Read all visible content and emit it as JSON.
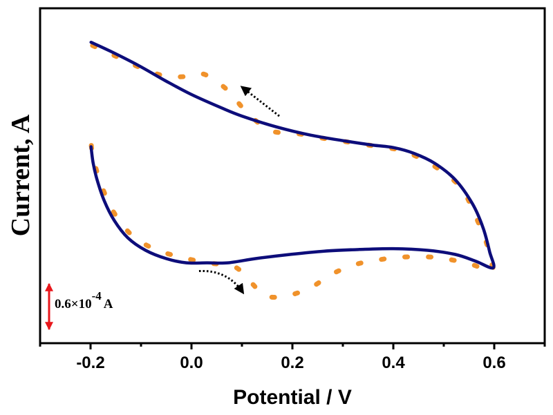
{
  "chart_data": {
    "type": "line",
    "title": "",
    "xlabel": "Potential / V",
    "ylabel": "Current, A",
    "xlim": [
      -0.3,
      0.7
    ],
    "ylim": [
      -2.02,
      2.02
    ],
    "y_units_note": "current in units of 1e-4 A, relative (no y tick labels shown)",
    "grid": false,
    "legend": null,
    "x_ticks": [
      {
        "value": -0.2,
        "label": "-0.2"
      },
      {
        "value": 0.0,
        "label": "0.0"
      },
      {
        "value": 0.2,
        "label": "0.2"
      },
      {
        "value": 0.4,
        "label": "0.4"
      },
      {
        "value": 0.6,
        "label": "0.6"
      }
    ],
    "x_minor_ticks": [
      -0.1,
      0.1,
      0.3,
      0.5
    ],
    "scale_bar": {
      "value": 0.6,
      "label_main": "0.6×10",
      "label_exp": "-4",
      "label_unit": "A",
      "color": "#e8161b"
    },
    "annotations": [
      {
        "type": "dotted-arrow",
        "direction": "scan-reverse",
        "from": [
          0.174,
          0.72
        ],
        "to": [
          0.1,
          1.07
        ],
        "color": "#000000"
      },
      {
        "type": "dotted-arrow",
        "direction": "scan-forward",
        "from": [
          0.015,
          -1.15
        ],
        "to": [
          0.102,
          -1.41
        ],
        "color": "#000000"
      }
    ],
    "series": [
      {
        "name": "solid-cv",
        "style": "solid",
        "color": "#0d0d7a",
        "x": [
          -0.199,
          -0.16,
          -0.105,
          -0.05,
          0.0,
          0.059,
          0.1,
          0.168,
          0.236,
          0.304,
          0.359,
          0.4,
          0.441,
          0.482,
          0.523,
          0.557,
          0.578,
          0.591,
          0.598,
          0.563,
          0.523,
          0.468,
          0.4,
          0.332,
          0.263,
          0.195,
          0.127,
          0.072,
          0.031,
          -0.01,
          -0.05,
          -0.091,
          -0.126,
          -0.153,
          -0.173,
          -0.187,
          -0.195,
          -0.199
        ],
        "y": [
          1.61,
          1.5,
          1.33,
          1.14,
          0.98,
          0.82,
          0.72,
          0.59,
          0.49,
          0.42,
          0.37,
          0.34,
          0.27,
          0.15,
          -0.05,
          -0.34,
          -0.63,
          -0.92,
          -1.11,
          -1.03,
          -0.95,
          -0.9,
          -0.88,
          -0.89,
          -0.91,
          -0.95,
          -1.0,
          -1.05,
          -1.05,
          -1.05,
          -1.0,
          -0.9,
          -0.75,
          -0.54,
          -0.3,
          -0.05,
          0.16,
          0.35
        ]
      },
      {
        "name": "dashed-cv",
        "style": "dashed",
        "color": "#f0922b",
        "x": [
          -0.196,
          -0.153,
          -0.1,
          -0.05,
          -0.001,
          0.027,
          0.072,
          0.106,
          0.154,
          0.209,
          0.263,
          0.318,
          0.372,
          0.413,
          0.447,
          0.495,
          0.536,
          0.563,
          0.584,
          0.593,
          0.596,
          0.55,
          0.502,
          0.471,
          0.424,
          0.375,
          0.325,
          0.277,
          0.236,
          0.188,
          0.147,
          0.12,
          0.086,
          0.031,
          -0.023,
          -0.067,
          -0.105,
          -0.132,
          -0.156,
          -0.173,
          -0.187,
          -0.196,
          -0.199
        ],
        "y": [
          1.57,
          1.45,
          1.3,
          1.2,
          1.2,
          1.22,
          1.03,
          0.79,
          0.55,
          0.51,
          0.45,
          0.4,
          0.35,
          0.31,
          0.23,
          0.06,
          -0.16,
          -0.49,
          -0.8,
          -1.03,
          -1.15,
          -1.06,
          -1.0,
          -0.98,
          -0.98,
          -1.01,
          -1.07,
          -1.19,
          -1.35,
          -1.45,
          -1.45,
          -1.3,
          -1.1,
          -1.05,
          -0.98,
          -0.9,
          -0.78,
          -0.63,
          -0.42,
          -0.2,
          0.04,
          0.25,
          0.4
        ]
      }
    ]
  }
}
